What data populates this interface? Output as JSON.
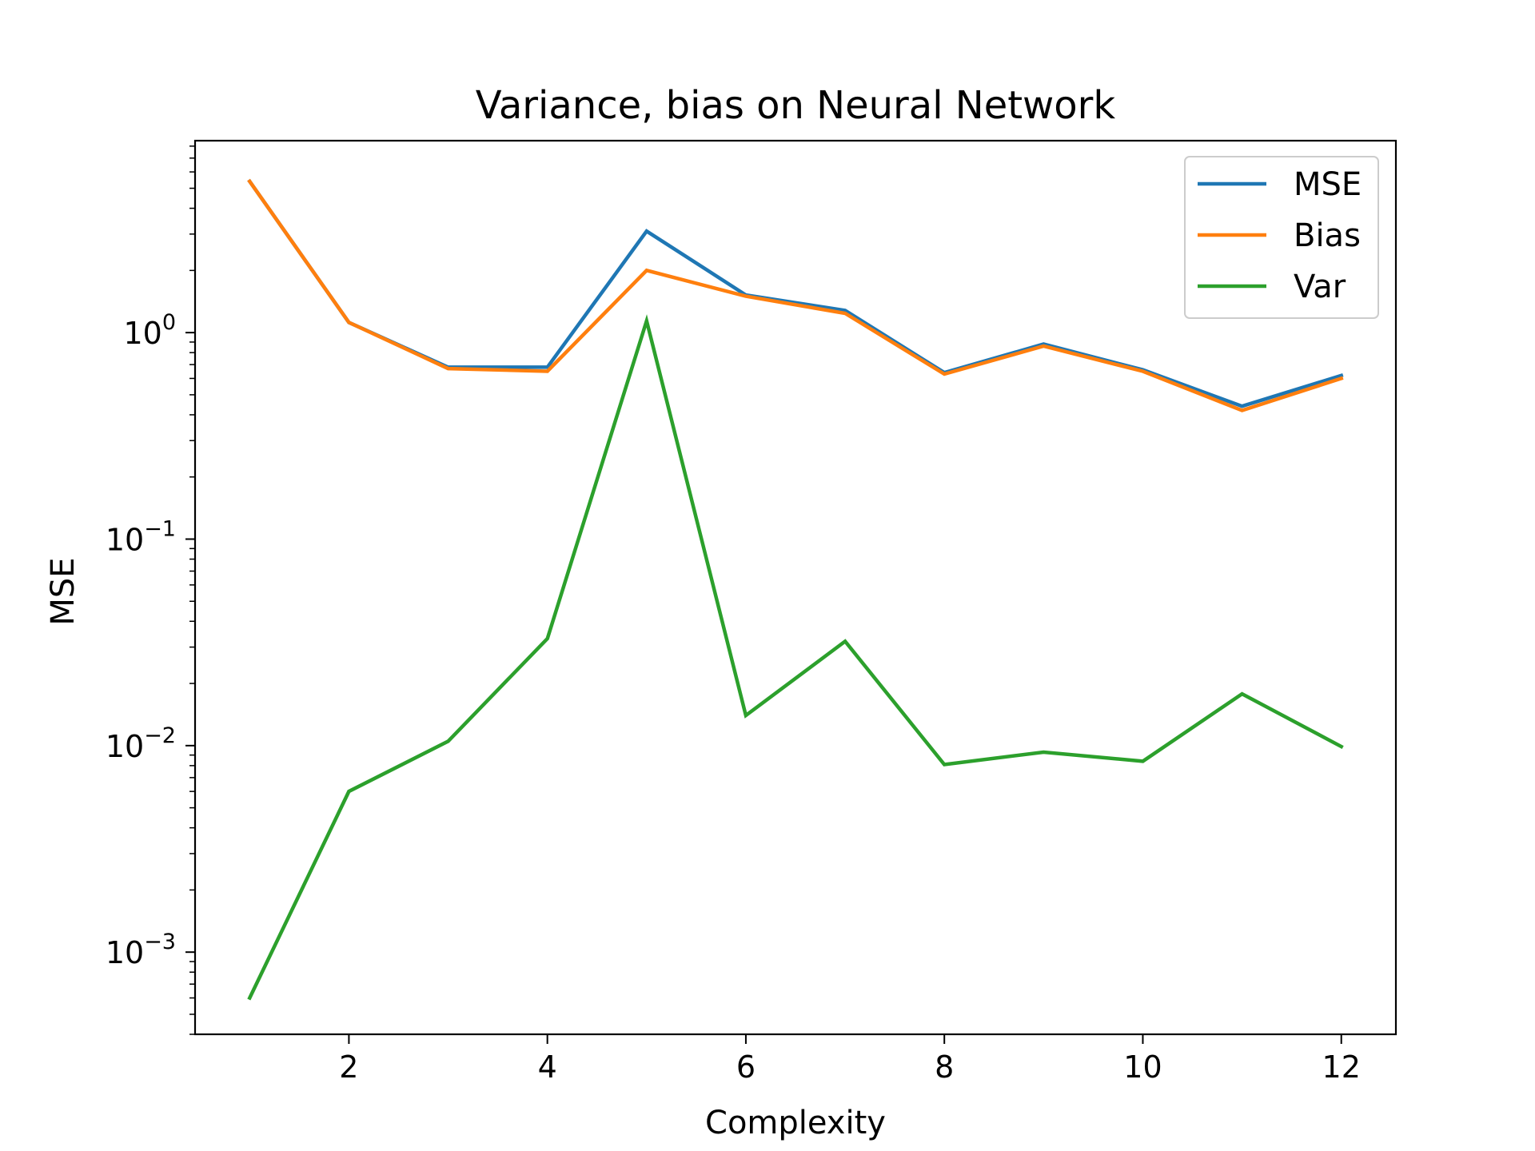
{
  "chart_data": {
    "type": "line",
    "title": "Variance, bias on Neural Network",
    "xlabel": "Complexity",
    "ylabel": "MSE",
    "xlim": [
      0.45,
      12.55
    ],
    "ylim": [
      0.0004,
      8.5
    ],
    "yscale": "log",
    "x": [
      1,
      2,
      3,
      4,
      5,
      6,
      7,
      8,
      9,
      10,
      11,
      12
    ],
    "xticks": [
      2,
      4,
      6,
      8,
      10,
      12
    ],
    "yticks": [
      {
        "value": 0.001,
        "base": "10",
        "exp": "−3"
      },
      {
        "value": 0.01,
        "base": "10",
        "exp": "−2"
      },
      {
        "value": 0.1,
        "base": "10",
        "exp": "−1"
      },
      {
        "value": 1,
        "base": "10",
        "exp": "0"
      }
    ],
    "grid": false,
    "legend_position": "top-right",
    "series": [
      {
        "name": "MSE",
        "color": "#1f77b4",
        "values": [
          5.4,
          1.12,
          0.68,
          0.68,
          3.1,
          1.52,
          1.28,
          0.64,
          0.88,
          0.66,
          0.44,
          0.62
        ]
      },
      {
        "name": "Bias",
        "color": "#ff7f0e",
        "values": [
          5.4,
          1.12,
          0.67,
          0.65,
          2.0,
          1.5,
          1.24,
          0.63,
          0.86,
          0.65,
          0.42,
          0.6
        ]
      },
      {
        "name": "Var",
        "color": "#2ca02c",
        "values": [
          0.0006,
          0.006,
          0.0105,
          0.033,
          1.14,
          0.014,
          0.032,
          0.0081,
          0.0093,
          0.0084,
          0.0178,
          0.0099
        ]
      }
    ]
  }
}
